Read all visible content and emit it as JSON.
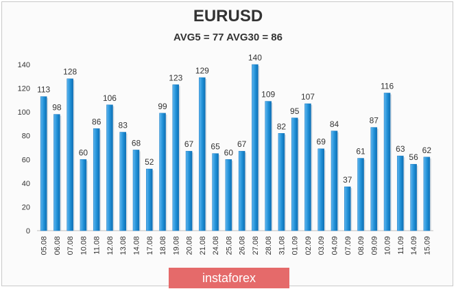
{
  "chart_data": {
    "type": "bar",
    "title": "EURUSD",
    "subtitle": "AVG5 = 77 AVG30 = 86",
    "categories": [
      "05.08",
      "06.08",
      "07.08",
      "10.08",
      "11.08",
      "12.08",
      "13.08",
      "14.08",
      "17.08",
      "18.08",
      "19.08",
      "20.08",
      "21.08",
      "24.08",
      "25.08",
      "26.08",
      "27.08",
      "28.08",
      "31.08",
      "01.09",
      "02.09",
      "03.09",
      "04.09",
      "07.09",
      "08.09",
      "09.09",
      "10.09",
      "11.09",
      "14.09",
      "15.09"
    ],
    "values": [
      113,
      98,
      128,
      60,
      86,
      106,
      83,
      68,
      52,
      99,
      123,
      67,
      129,
      65,
      60,
      67,
      140,
      109,
      82,
      95,
      107,
      69,
      84,
      37,
      61,
      87,
      116,
      63,
      56,
      62
    ],
    "ylim": [
      0,
      140
    ],
    "yticks": [
      0,
      20,
      40,
      60,
      80,
      100,
      120,
      140
    ],
    "grid": false,
    "bar_color": "#1f8fd6"
  },
  "watermark": {
    "text": "instaforex",
    "color": "#e56a6a"
  }
}
